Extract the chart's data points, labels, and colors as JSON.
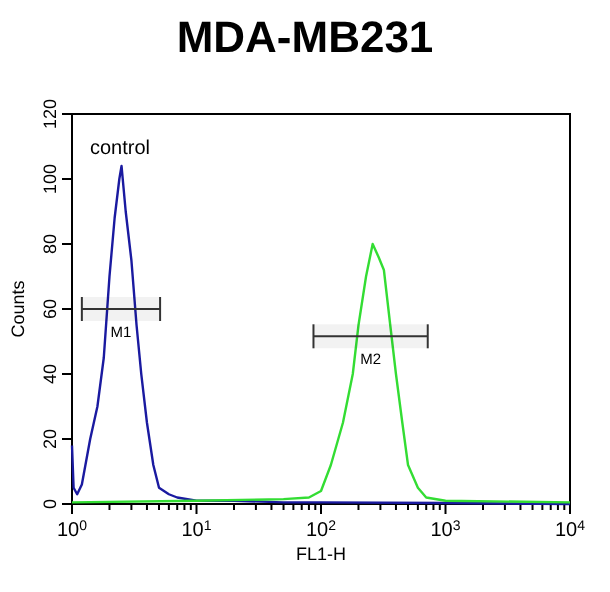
{
  "chart_data": {
    "type": "line",
    "title": "MDA-MB231",
    "xlabel": "FL1-H",
    "ylabel": "Counts",
    "log": "x",
    "xlim": [
      1,
      10000
    ],
    "ylim": [
      0,
      120
    ],
    "xticks": [
      {
        "value": 1,
        "label": "10$^{0}$"
      },
      {
        "value": 2,
        "label": null
      },
      {
        "value": 3,
        "label": null
      },
      {
        "value": 4,
        "label": null
      },
      {
        "value": 5,
        "label": null
      },
      {
        "value": 6,
        "label": null
      },
      {
        "value": 7,
        "label": null
      },
      {
        "value": 8,
        "label": null
      },
      {
        "value": 9,
        "label": null
      },
      {
        "value": 10,
        "label": "10$^{1}$"
      },
      {
        "value": 20,
        "label": null
      },
      {
        "value": 30,
        "label": null
      },
      {
        "value": 40,
        "label": null
      },
      {
        "value": 50,
        "label": null
      },
      {
        "value": 60,
        "label": null
      },
      {
        "value": 70,
        "label": null
      },
      {
        "value": 80,
        "label": null
      },
      {
        "value": 90,
        "label": null
      },
      {
        "value": 100,
        "label": "10$^{2}$"
      },
      {
        "value": 200,
        "label": null
      },
      {
        "value": 300,
        "label": null
      },
      {
        "value": 400,
        "label": null
      },
      {
        "value": 500,
        "label": null
      },
      {
        "value": 600,
        "label": null
      },
      {
        "value": 700,
        "label": null
      },
      {
        "value": 800,
        "label": null
      },
      {
        "value": 900,
        "label": null
      },
      {
        "value": 1000,
        "label": "10$^{3}$"
      },
      {
        "value": 2000,
        "label": null
      },
      {
        "value": 3000,
        "label": null
      },
      {
        "value": 4000,
        "label": null
      },
      {
        "value": 5000,
        "label": null
      },
      {
        "value": 6000,
        "label": null
      },
      {
        "value": 7000,
        "label": null
      },
      {
        "value": 8000,
        "label": null
      },
      {
        "value": 9000,
        "label": null
      },
      {
        "value": 10000,
        "label": "10$^{4}$"
      }
    ],
    "yticks": [
      0,
      20,
      40,
      60,
      80,
      100,
      120
    ],
    "grid": false,
    "series": [
      {
        "color": "#1a1aa0",
        "x": [
          1,
          1.03,
          1.1,
          1.2,
          1.4,
          1.6,
          1.8,
          2.0,
          2.2,
          2.4,
          2.5,
          2.7,
          3.0,
          3.3,
          3.6,
          4.0,
          4.5,
          5,
          6,
          7,
          10,
          20,
          50,
          100,
          1000,
          10000
        ],
        "values": [
          18,
          5,
          3,
          6,
          20,
          30,
          45,
          70,
          88,
          100,
          104,
          90,
          75,
          55,
          40,
          25,
          12,
          5,
          3,
          2,
          1,
          1,
          0.5,
          0.5,
          0.3,
          0
        ]
      },
      {
        "color": "#33dd33",
        "x": [
          1,
          10,
          50,
          80,
          100,
          120,
          150,
          180,
          200,
          230,
          260,
          290,
          320,
          360,
          400,
          450,
          500,
          600,
          700,
          1000,
          10000
        ],
        "values": [
          0.5,
          1,
          1.5,
          2,
          4,
          12,
          25,
          40,
          55,
          70,
          80,
          76,
          72,
          55,
          40,
          25,
          12,
          5,
          2,
          1,
          0.5
        ]
      }
    ],
    "bands": [
      {
        "axis": "x",
        "from": 1.2,
        "to": 5.1,
        "label": "M1"
      },
      {
        "axis": "x",
        "from": 87,
        "to": 720,
        "label": "M2"
      }
    ],
    "annotations": [
      "control"
    ]
  }
}
